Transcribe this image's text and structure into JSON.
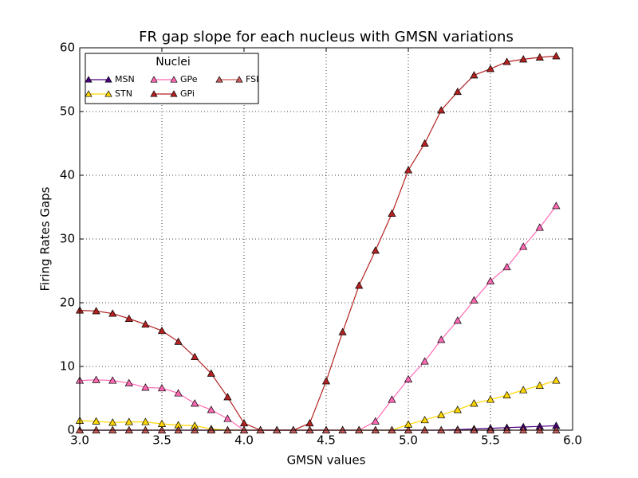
{
  "chart_data": {
    "type": "line",
    "title": "FR gap slope for each nucleus with GMSN variations",
    "x_label": "GMSN values",
    "y_label": "Firing Rates Gaps",
    "legend_title": "Nuclei",
    "legend": "upper left",
    "grid": true,
    "x": [
      3.0,
      3.1,
      3.2,
      3.3,
      3.4,
      3.5,
      3.6,
      3.7,
      3.8,
      3.9,
      4.0,
      4.1,
      4.2,
      4.3,
      4.4,
      4.5,
      4.6,
      4.7,
      4.8,
      4.9,
      5.0,
      5.1,
      5.2,
      5.3,
      5.4,
      5.5,
      5.6,
      5.7,
      5.8,
      5.9
    ],
    "xlim": [
      3,
      6
    ],
    "xticks": [
      {
        "value": 3,
        "label": "3.0"
      },
      {
        "value": 3.5,
        "label": "3.5"
      },
      {
        "value": 4,
        "label": "4.0"
      },
      {
        "value": 4.5,
        "label": "4.5"
      },
      {
        "value": 5,
        "label": "5.0"
      },
      {
        "value": 5.5,
        "label": "5.5"
      },
      {
        "value": 6,
        "label": "6.0"
      }
    ],
    "ylim": [
      0,
      60
    ],
    "yticks": [
      0,
      10,
      20,
      30,
      40,
      50,
      60
    ],
    "series": [
      {
        "name": "MSN",
        "color": "#4b0082",
        "values": [
          0,
          0,
          0,
          0,
          0,
          0,
          0,
          0,
          0,
          0,
          0,
          0,
          0,
          0,
          0,
          0,
          0,
          0,
          0,
          0,
          0,
          0,
          0,
          0.1,
          0.2,
          0.3,
          0.4,
          0.5,
          0.6,
          0.7
        ]
      },
      {
        "name": "STN",
        "color": "#ffd700",
        "values": [
          1.5,
          1.4,
          1.2,
          1.3,
          1.3,
          1.0,
          0.8,
          0.7,
          0.2,
          0,
          0,
          0,
          0,
          0,
          0,
          0,
          0,
          0,
          0,
          0,
          0.9,
          1.6,
          2.4,
          3.2,
          4.2,
          4.8,
          5.5,
          6.3,
          7.0,
          7.8
        ]
      },
      {
        "name": "GPe",
        "color": "#ff69b4",
        "values": [
          7.8,
          7.9,
          7.8,
          7.4,
          6.7,
          6.6,
          5.8,
          4.2,
          3.2,
          1.8,
          0,
          0,
          0,
          0,
          0,
          0,
          0,
          0,
          1.4,
          4.8,
          8.0,
          10.8,
          14.2,
          17.2,
          20.4,
          23.4,
          25.6,
          28.8,
          31.8,
          35.2
        ]
      },
      {
        "name": "GPi",
        "color": "#b22222",
        "values": [
          18.8,
          18.7,
          18.3,
          17.5,
          16.6,
          15.6,
          13.9,
          11.5,
          8.9,
          5.2,
          1.1,
          0,
          0,
          0,
          1.1,
          7.7,
          15.4,
          22.7,
          28.2,
          34.0,
          40.8,
          45.0,
          50.2,
          53.1,
          55.7,
          56.7,
          57.8,
          58.2,
          58.5,
          58.7
        ]
      },
      {
        "name": "FSI",
        "color": "#cd5c5c",
        "values": [
          0,
          0,
          0,
          0,
          0,
          0,
          0,
          0,
          0,
          0,
          0,
          0,
          0,
          0,
          0,
          0,
          0,
          0,
          0,
          0,
          0,
          0,
          0,
          0,
          0,
          0,
          0,
          0,
          0,
          0
        ]
      }
    ]
  }
}
